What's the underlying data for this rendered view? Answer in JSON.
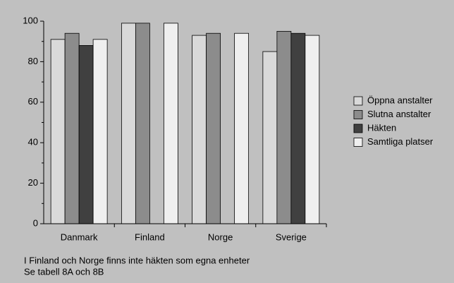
{
  "chart_data": {
    "type": "bar",
    "categories": [
      "Danmark",
      "Finland",
      "Norge",
      "Sverige"
    ],
    "series": [
      {
        "name": "Öppna anstalter",
        "color": "#d9d9d9",
        "values": [
          91,
          99,
          93,
          85
        ]
      },
      {
        "name": "Slutna anstalter",
        "color": "#8c8c8c",
        "values": [
          94,
          99,
          94,
          95
        ]
      },
      {
        "name": "Häkten",
        "color": "#404040",
        "values": [
          88,
          null,
          null,
          94
        ]
      },
      {
        "name": "Samtliga platser",
        "color": "#efefef",
        "values": [
          91,
          99,
          94,
          93
        ]
      }
    ],
    "ylim": [
      0,
      100
    ],
    "yticks": [
      0,
      20,
      40,
      60,
      80,
      100
    ],
    "minor_yticks": [
      10,
      30,
      50,
      70,
      90
    ],
    "legend": "right",
    "notes": [
      "I Finland och Norge finns inte häkten som egna enheter",
      "Se tabell 8A och 8B"
    ]
  }
}
